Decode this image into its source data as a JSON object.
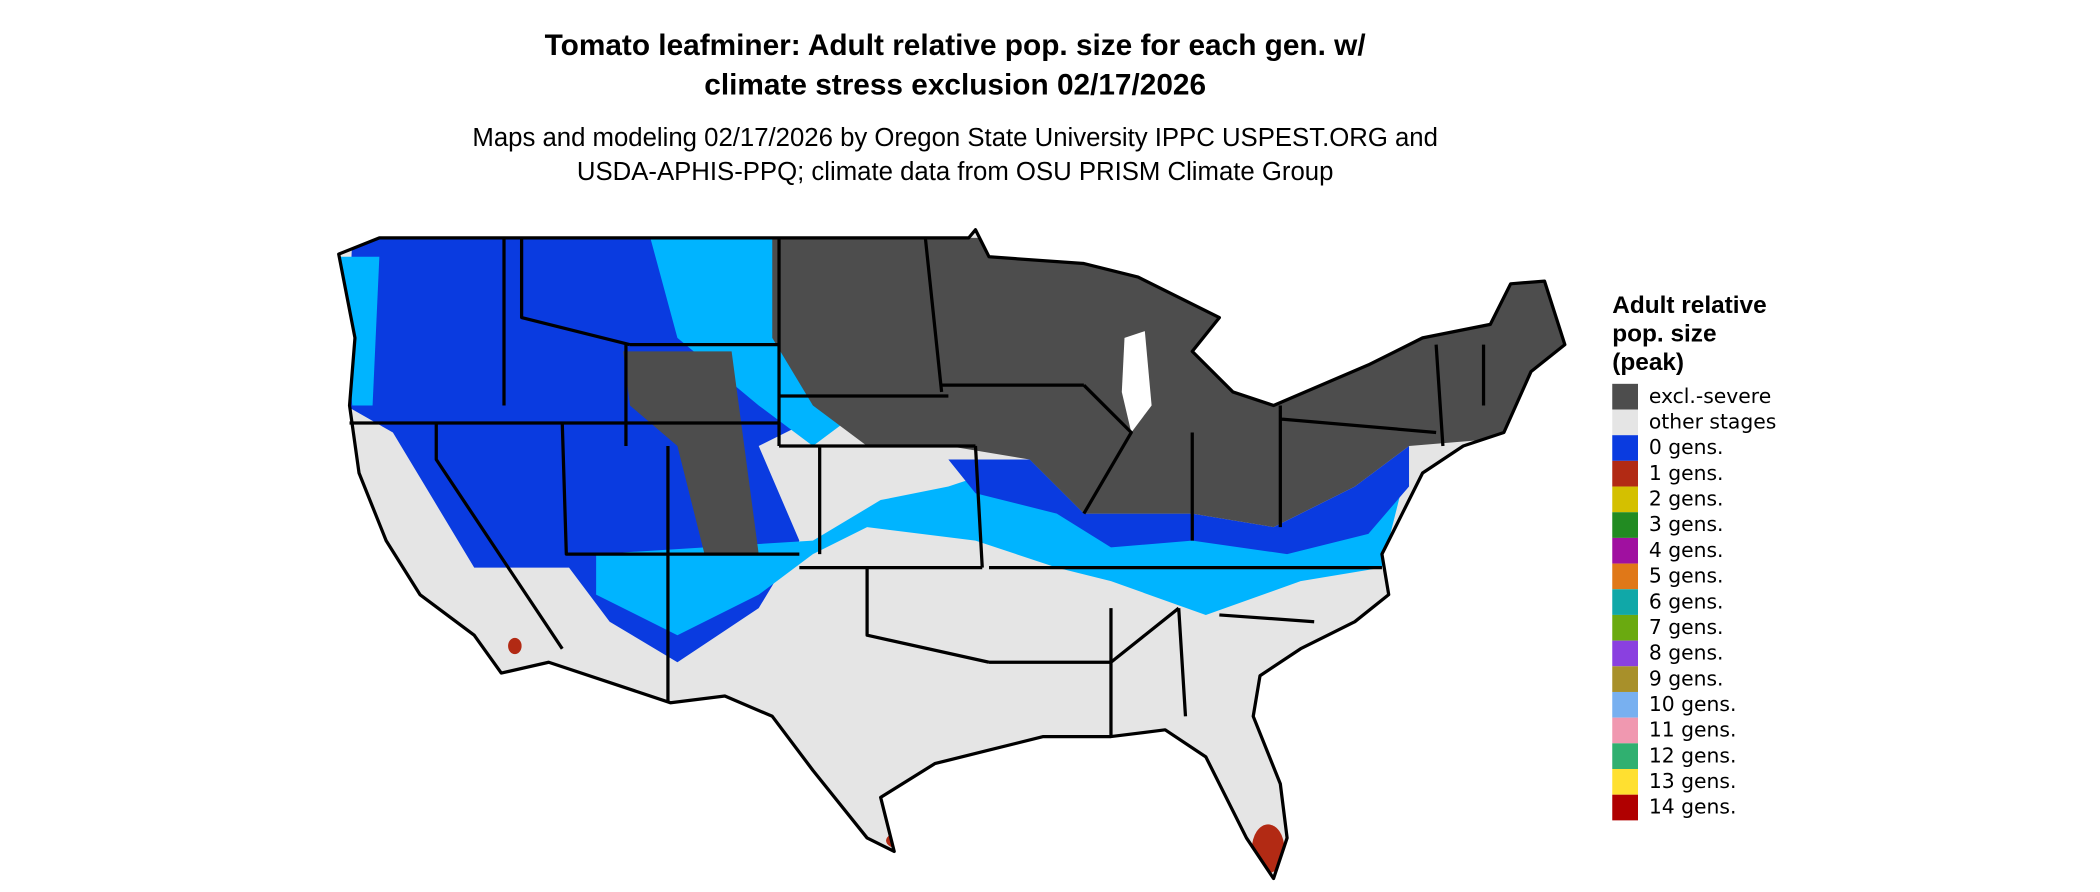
{
  "title": [
    "Tomato leafminer: Adult relative pop. size for each gen. w/",
    "climate stress exclusion 02/17/2026"
  ],
  "subtitle": [
    "Maps and modeling 02/17/2026 by Oregon State University IPPC USPEST.ORG and",
    "USDA-APHIS-PPQ; climate data from OSU PRISM Climate Group"
  ],
  "legend": {
    "title": [
      "Adult relative",
      "pop. size",
      "(peak)"
    ],
    "items": [
      {
        "label": "excl.-severe",
        "color": "#4d4d4d"
      },
      {
        "label": "other stages",
        "color": "#e5e5e5"
      },
      {
        "label": "0 gens.",
        "color": "#0a3be0"
      },
      {
        "label": "1 gens.",
        "color": "#b22a14"
      },
      {
        "label": "2 gens.",
        "color": "#d4c000"
      },
      {
        "label": "3 gens.",
        "color": "#228b22"
      },
      {
        "label": "4 gens.",
        "color": "#a010a0"
      },
      {
        "label": "5 gens.",
        "color": "#e07818"
      },
      {
        "label": "6 gens.",
        "color": "#10a8a8"
      },
      {
        "label": "7 gens.",
        "color": "#6aaa10"
      },
      {
        "label": "8 gens.",
        "color": "#8a40e0"
      },
      {
        "label": "9 gens.",
        "color": "#a8902a"
      },
      {
        "label": "10 gens.",
        "color": "#78b0f0"
      },
      {
        "label": "11 gens.",
        "color": "#f098b0"
      },
      {
        "label": "12 gens.",
        "color": "#30b070"
      },
      {
        "label": "13 gens.",
        "color": "#ffe030"
      },
      {
        "label": "14 gens.",
        "color": "#b00000"
      }
    ]
  }
}
